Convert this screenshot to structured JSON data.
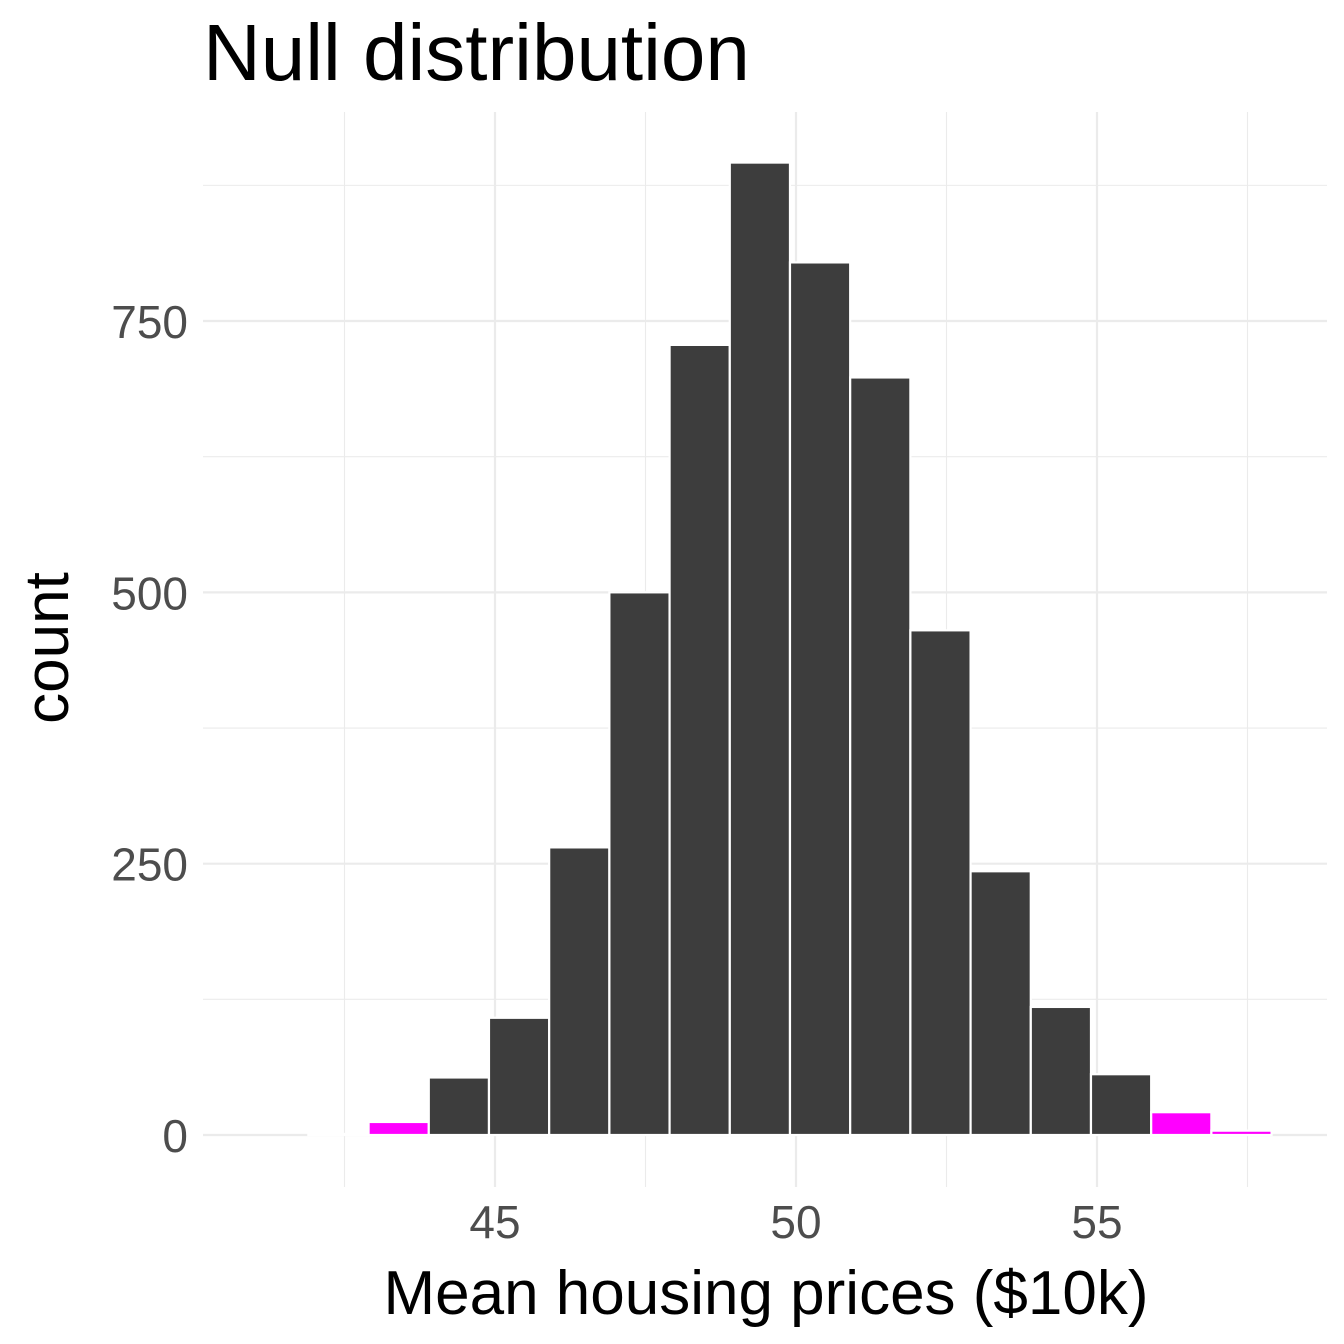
{
  "chart_data": {
    "type": "bar",
    "title": "Null distribution",
    "xlabel": "Mean housing prices ($10k)",
    "ylabel": "count",
    "x_ticks": [
      45,
      50,
      55
    ],
    "y_ticks": [
      0,
      250,
      500,
      750
    ],
    "xlim": [
      40.5,
      59.3
    ],
    "ylim": [
      -40,
      950
    ],
    "grid": true,
    "legend": "none",
    "bin_width": 1,
    "bins": [
      {
        "x_start": 41.9,
        "x_end": 42.9,
        "count": 1,
        "tail": true
      },
      {
        "x_start": 42.9,
        "x_end": 43.9,
        "count": 12,
        "tail": true
      },
      {
        "x_start": 43.9,
        "x_end": 44.9,
        "count": 53,
        "tail": false
      },
      {
        "x_start": 44.9,
        "x_end": 45.9,
        "count": 108,
        "tail": false
      },
      {
        "x_start": 45.9,
        "x_end": 46.9,
        "count": 265,
        "tail": false
      },
      {
        "x_start": 46.9,
        "x_end": 47.9,
        "count": 500,
        "tail": false
      },
      {
        "x_start": 47.9,
        "x_end": 48.9,
        "count": 728,
        "tail": false
      },
      {
        "x_start": 48.9,
        "x_end": 49.9,
        "count": 896,
        "tail": false
      },
      {
        "x_start": 49.9,
        "x_end": 50.9,
        "count": 804,
        "tail": false
      },
      {
        "x_start": 50.9,
        "x_end": 51.9,
        "count": 698,
        "tail": false
      },
      {
        "x_start": 51.9,
        "x_end": 52.9,
        "count": 465,
        "tail": false
      },
      {
        "x_start": 52.9,
        "x_end": 53.9,
        "count": 243,
        "tail": false
      },
      {
        "x_start": 53.9,
        "x_end": 54.9,
        "count": 118,
        "tail": false
      },
      {
        "x_start": 54.9,
        "x_end": 55.9,
        "count": 56,
        "tail": false
      },
      {
        "x_start": 55.9,
        "x_end": 56.9,
        "count": 21,
        "tail": true
      },
      {
        "x_start": 56.9,
        "x_end": 57.9,
        "count": 4,
        "tail": true
      }
    ],
    "colors": {
      "bar": "#3d3d3d",
      "tail": "#ff00ff",
      "grid": "#ebebeb"
    }
  }
}
